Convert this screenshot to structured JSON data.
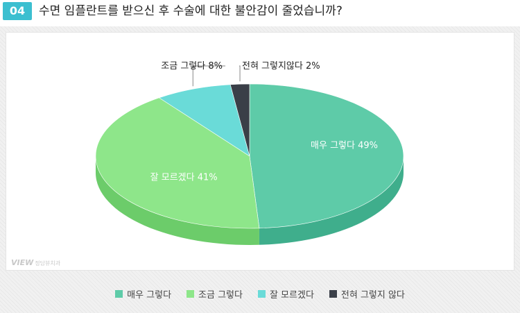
{
  "header": {
    "badge": "04",
    "title": "수면 임플란트를 받으신 후 수술에 대한 불안감이 줄었습니까?"
  },
  "watermark": {
    "brand": "VIEW",
    "name": "정담뷰치과"
  },
  "chart_data": {
    "type": "pie",
    "title": "수면 임플란트를 받으신 후 수술에 대한 불안감이 줄었습니까?",
    "slices": [
      {
        "name": "매우 그렇다",
        "label": "매우 그렇다 49%",
        "value": 49,
        "color": "#5ecba8"
      },
      {
        "name": "조금 그렇다",
        "label": "조금 그렇다 8%",
        "value": 8,
        "color": "#8ee68a"
      },
      {
        "name": "잘 모르겠다",
        "label": "잘 모르겠다 41%",
        "value": 41,
        "color": "#6adbd8"
      },
      {
        "name": "전혀 그렇지 않다",
        "label": "전혀 그렇지않다 2%",
        "value": 2,
        "color": "#3a3f48"
      }
    ],
    "legend_position": "bottom"
  }
}
